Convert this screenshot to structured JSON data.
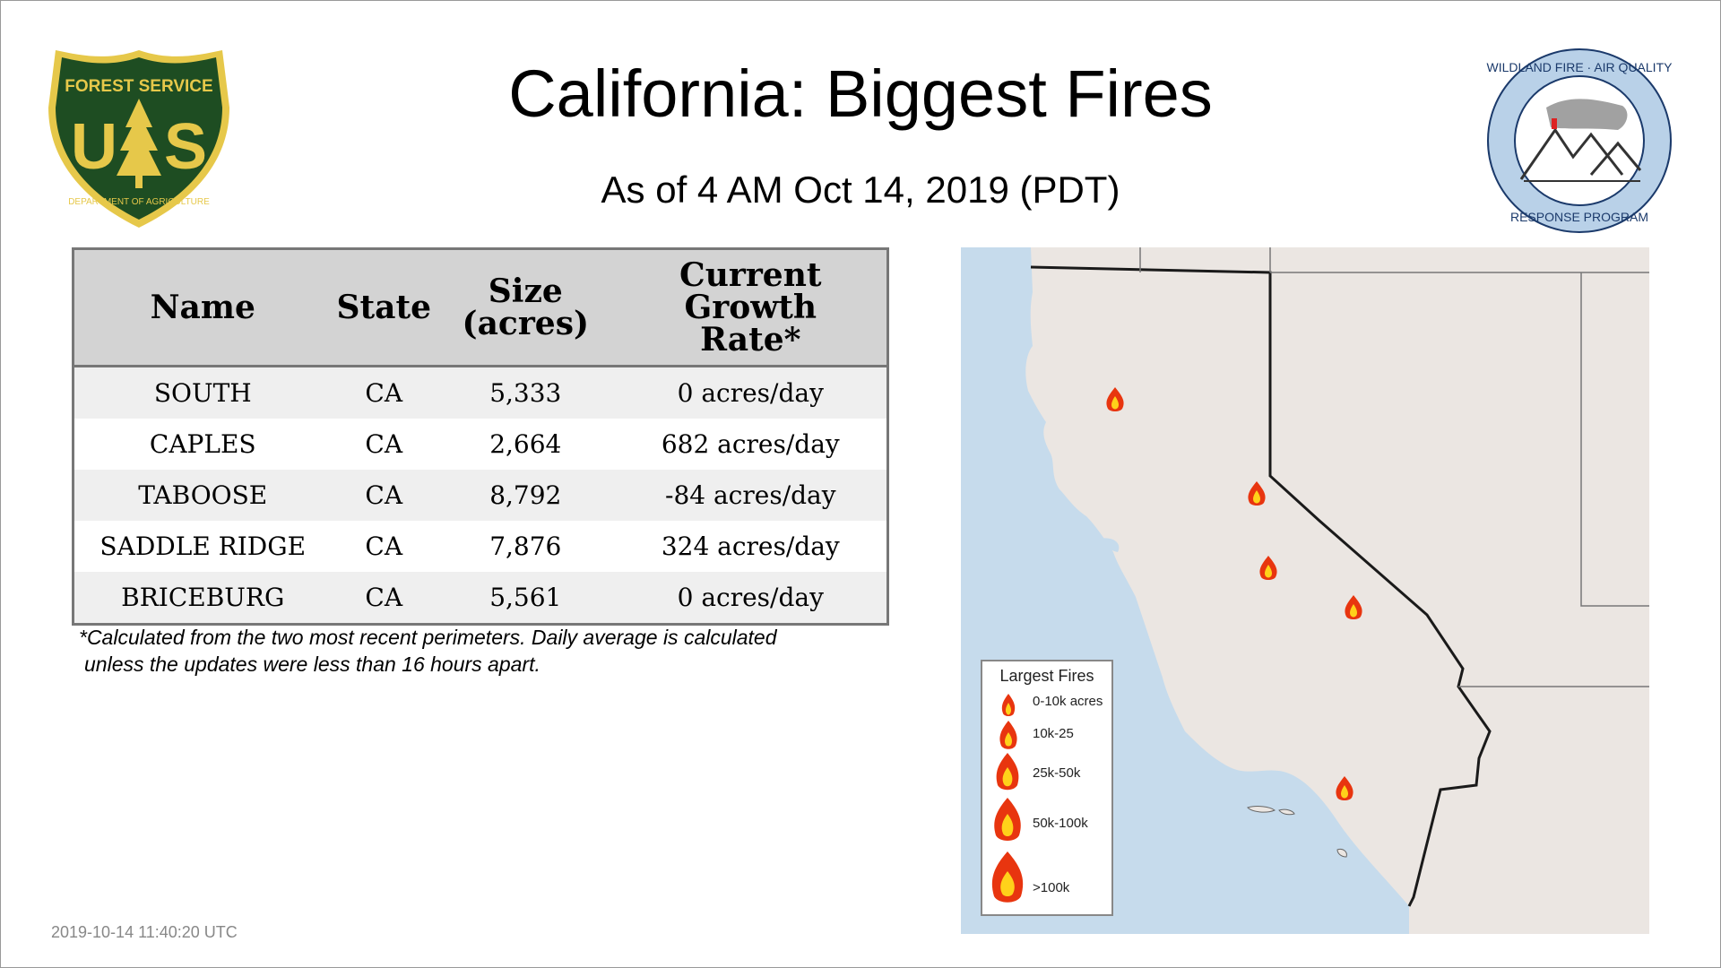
{
  "header": {
    "title": "California: Biggest Fires",
    "subtitle": "As of  4 AM Oct 14, 2019 (PDT)"
  },
  "logos": {
    "left": {
      "icon": "forest-service-shield",
      "text_top": "FOREST SERVICE",
      "text_letters": "US",
      "text_bottom": "DEPARTMENT OF AGRICULTURE",
      "colors": {
        "shield": "#1e4d22",
        "border": "#e6c84a",
        "text": "#e6c84a"
      }
    },
    "right": {
      "icon": "wildland-fire-air-quality-badge",
      "text_top": "WILDLAND FIRE · AIR QUALITY",
      "text_bottom": "RESPONSE PROGRAM",
      "colors": {
        "ring": "#b9d1e8",
        "text": "#1b3a6b"
      }
    }
  },
  "table": {
    "headers": {
      "name": "Name",
      "state": "State",
      "size_line1": "Size",
      "size_line2": "(acres)",
      "growth_line1": "Current",
      "growth_line2": "Growth",
      "growth_line3": "Rate*"
    },
    "rows": [
      {
        "name": "SOUTH",
        "state": "CA",
        "size": "5,333",
        "growth": "0 acres/day"
      },
      {
        "name": "CAPLES",
        "state": "CA",
        "size": "2,664",
        "growth": "682 acres/day"
      },
      {
        "name": "TABOOSE",
        "state": "CA",
        "size": "8,792",
        "growth": "-84 acres/day"
      },
      {
        "name": "SADDLE RIDGE",
        "state": "CA",
        "size": "7,876",
        "growth": "324 acres/day"
      },
      {
        "name": "BRICEBURG",
        "state": "CA",
        "size": "5,561",
        "growth": "0 acres/day"
      }
    ]
  },
  "footnote": {
    "line1": "*Calculated from the two most recent perimeters. Daily average is calculated",
    "line2": "unless the updates were less than 16 hours apart."
  },
  "timestamp": "2019-10-14 11:40:20 UTC",
  "map": {
    "colors": {
      "ocean": "#c6dbec",
      "land": "#ebe6e2",
      "border": "#1a1a1a",
      "fire_outer": "#e8350f",
      "fire_inner": "#ffd21a"
    },
    "legend": {
      "title": "Largest Fires",
      "items": [
        {
          "label": "0-10k acres",
          "icon": "fire-icon-xs"
        },
        {
          "label": "10k-25",
          "icon": "fire-icon-sm"
        },
        {
          "label": "25k-50k",
          "icon": "fire-icon-md"
        },
        {
          "label": "50k-100k",
          "icon": "fire-icon-lg"
        },
        {
          "label": ">100k",
          "icon": "fire-icon-xl"
        }
      ]
    }
  }
}
